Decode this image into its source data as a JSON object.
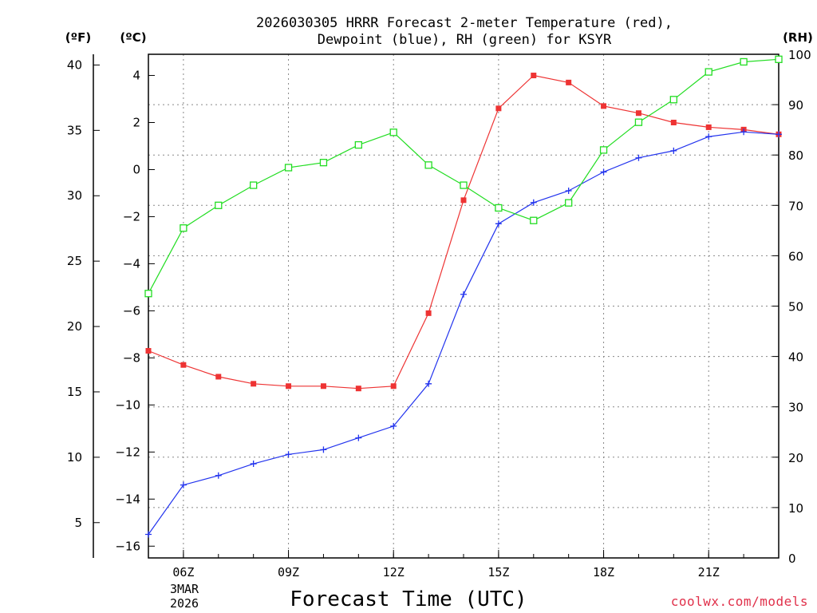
{
  "chart_data": {
    "type": "line",
    "title_line1": "2026030305 HRRR Forecast 2-meter Temperature (red),",
    "title_line2": "Dewpoint (blue), RH (green) for KSYR",
    "xlabel": "Forecast Time (UTC)",
    "credit": "coolwx.com/models",
    "unit_left_f": "(ºF)",
    "unit_left_c": "(ºC)",
    "unit_right": "(RH)",
    "date_labels": [
      "3MAR",
      "2026"
    ],
    "x": [
      5,
      6,
      7,
      8,
      9,
      10,
      11,
      12,
      13,
      14,
      15,
      16,
      17,
      18,
      19,
      20,
      21,
      22,
      23
    ],
    "xlim": [
      5,
      23
    ],
    "x_ticks": [
      {
        "hour": 6,
        "label": "06Z"
      },
      {
        "hour": 9,
        "label": "09Z"
      },
      {
        "hour": 12,
        "label": "12Z"
      },
      {
        "hour": 15,
        "label": "15Z"
      },
      {
        "hour": 18,
        "label": "18Z"
      },
      {
        "hour": 21,
        "label": "21Z"
      }
    ],
    "ylim_c": [
      -16.5,
      4.9
    ],
    "y_c_ticks": [
      4,
      2,
      0,
      -2,
      -4,
      -6,
      -8,
      -10,
      -12,
      -14,
      -16
    ],
    "y_c_tick_labels": [
      "4",
      "2",
      "0",
      "−2",
      "−4",
      "−6",
      "−8",
      "−10",
      "−12",
      "−14",
      "−16"
    ],
    "y_f_ticks": [
      40,
      35,
      30,
      25,
      20,
      15,
      10,
      5
    ],
    "y_f_tick_labels": [
      "40",
      "35",
      "30",
      "25",
      "20",
      "15",
      "10",
      "5"
    ],
    "ylim_rh": [
      0,
      100
    ],
    "y_rh_ticks": [
      100,
      90,
      80,
      70,
      60,
      50,
      40,
      30,
      20,
      10,
      0
    ],
    "y_rh_tick_labels": [
      "100",
      "90",
      "80",
      "70",
      "60",
      "50",
      "40",
      "30",
      "20",
      "10",
      "0"
    ],
    "series": [
      {
        "name": "Temperature",
        "axis": "C",
        "color": "#ee3333",
        "marker": "filled-square",
        "values": [
          -7.7,
          -8.3,
          -8.8,
          -9.1,
          -9.2,
          -9.2,
          -9.3,
          -9.2,
          -6.1,
          -1.3,
          2.6,
          4.0,
          3.7,
          2.7,
          2.4,
          2.0,
          1.8,
          1.7,
          1.5
        ]
      },
      {
        "name": "Dewpoint",
        "axis": "C",
        "color": "#2233ee",
        "marker": "plus",
        "values": [
          -15.5,
          -13.4,
          -13.0,
          -12.5,
          -12.1,
          -11.9,
          -11.4,
          -10.9,
          -9.1,
          -5.3,
          -2.3,
          -1.4,
          -0.9,
          -0.1,
          0.5,
          0.8,
          1.4,
          1.6,
          1.5
        ]
      },
      {
        "name": "RH",
        "axis": "RH",
        "color": "#22dd22",
        "marker": "open-square",
        "values": [
          52.5,
          65.5,
          70,
          74,
          77.5,
          78.5,
          82,
          84.5,
          78,
          74,
          69.5,
          67,
          70.5,
          81,
          86.5,
          91,
          96.5,
          98.5,
          99
        ]
      }
    ]
  }
}
